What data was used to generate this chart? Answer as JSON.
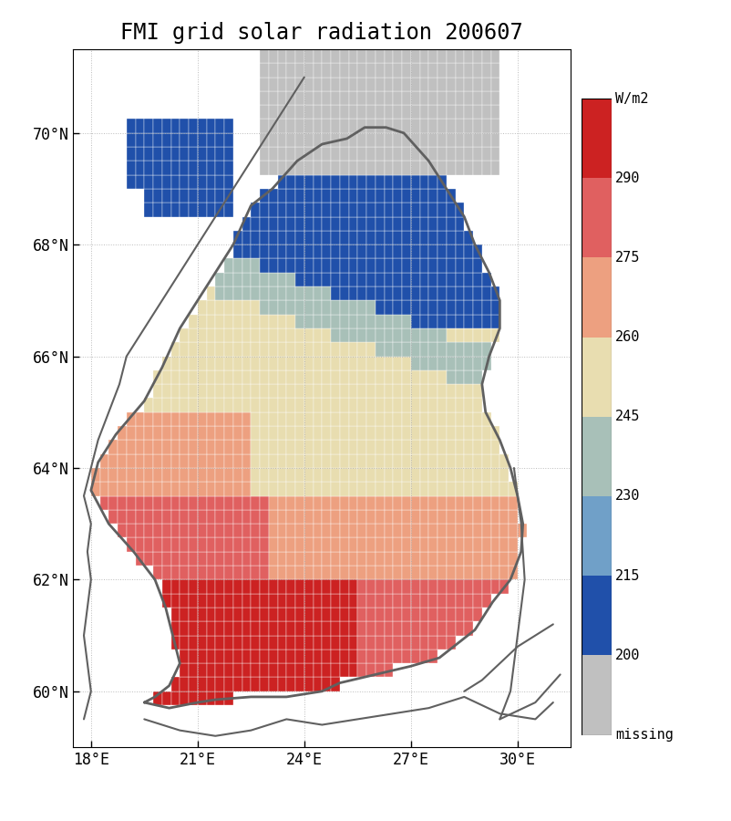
{
  "title": "FMI grid solar radiation 200607",
  "title_fontsize": 17,
  "colors": {
    "c_above290": "#cc2222",
    "c_275_290": "#e06060",
    "c_260_275": "#eda080",
    "c_245_260": "#e8ddb0",
    "c_230_245": "#a8c0b8",
    "c_215_230": "#70a0c8",
    "c_200_215": "#2050aa",
    "c_missing": "#c0c0c0",
    "border": "#606060",
    "background": "#ffffff",
    "grid": "#aaaaaa"
  },
  "xlim": [
    17.5,
    31.5
  ],
  "ylim": [
    59.0,
    71.5
  ],
  "xticks": [
    18,
    21,
    24,
    27,
    30
  ],
  "yticks": [
    60,
    62,
    64,
    66,
    68,
    70
  ],
  "cell_size": 0.25,
  "cbar_labels": [
    "W/m2",
    "290",
    "275",
    "260",
    "245",
    "230",
    "215",
    "200",
    "missing"
  ],
  "cbar_colors_top_to_bottom": [
    "#cc2222",
    "#e06060",
    "#eda080",
    "#e8ddb0",
    "#a8c0b8",
    "#70a0c8",
    "#2050aa",
    "#c0c0c0"
  ]
}
